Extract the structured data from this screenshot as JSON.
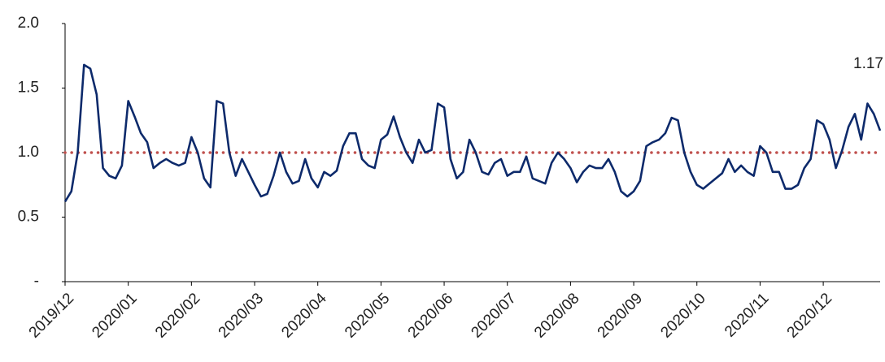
{
  "chart_data": {
    "type": "line",
    "categories": [
      "2019/12",
      null,
      null,
      null,
      null,
      null,
      null,
      null,
      null,
      null,
      "2020/01",
      null,
      null,
      null,
      null,
      null,
      null,
      null,
      null,
      null,
      "2020/02",
      null,
      null,
      null,
      null,
      null,
      null,
      null,
      null,
      null,
      "2020/03",
      null,
      null,
      null,
      null,
      null,
      null,
      null,
      null,
      null,
      "2020/04",
      null,
      null,
      null,
      null,
      null,
      null,
      null,
      null,
      null,
      "2020/05",
      null,
      null,
      null,
      null,
      null,
      null,
      null,
      null,
      null,
      "2020/06",
      null,
      null,
      null,
      null,
      null,
      null,
      null,
      null,
      null,
      "2020/07",
      null,
      null,
      null,
      null,
      null,
      null,
      null,
      null,
      null,
      "2020/08",
      null,
      null,
      null,
      null,
      null,
      null,
      null,
      null,
      null,
      "2020/09",
      null,
      null,
      null,
      null,
      null,
      null,
      null,
      null,
      null,
      "2020/10",
      null,
      null,
      null,
      null,
      null,
      null,
      null,
      null,
      null,
      "2020/11",
      null,
      null,
      null,
      null,
      null,
      null,
      null,
      null,
      null,
      "2020/12",
      null,
      null,
      null,
      null,
      null,
      null,
      null,
      null,
      null
    ],
    "series": [
      {
        "color": "#0d2a6b",
        "values": [
          0.62,
          0.7,
          1.0,
          1.68,
          1.65,
          1.45,
          0.88,
          0.82,
          0.8,
          0.9,
          1.4,
          1.28,
          1.15,
          1.08,
          0.88,
          0.92,
          0.95,
          0.92,
          0.9,
          0.92,
          1.12,
          1.0,
          0.8,
          0.73,
          1.4,
          1.38,
          1.0,
          0.82,
          0.95,
          0.85,
          0.75,
          0.66,
          0.68,
          0.82,
          1.0,
          0.85,
          0.76,
          0.78,
          0.95,
          0.8,
          0.73,
          0.85,
          0.82,
          0.86,
          1.05,
          1.15,
          1.15,
          0.95,
          0.9,
          0.88,
          1.1,
          1.14,
          1.28,
          1.12,
          1.0,
          0.92,
          1.1,
          1.0,
          1.02,
          1.38,
          1.35,
          0.95,
          0.8,
          0.85,
          1.1,
          1.0,
          0.85,
          0.83,
          0.92,
          0.95,
          0.82,
          0.85,
          0.85,
          0.97,
          0.8,
          0.78,
          0.76,
          0.92,
          1.0,
          0.95,
          0.88,
          0.77,
          0.85,
          0.9,
          0.88,
          0.88,
          0.95,
          0.85,
          0.7,
          0.66,
          0.7,
          0.78,
          1.05,
          1.08,
          1.1,
          1.15,
          1.27,
          1.25,
          1.0,
          0.85,
          0.75,
          0.72,
          0.76,
          0.8,
          0.84,
          0.95,
          0.85,
          0.9,
          0.85,
          0.82,
          1.05,
          1.0,
          0.85,
          0.85,
          0.72,
          0.72,
          0.75,
          0.88,
          0.95,
          1.25,
          1.22,
          1.1,
          0.88,
          1.02,
          1.2,
          1.3,
          1.1,
          1.38,
          1.3,
          1.17
        ]
      }
    ],
    "reference_line": {
      "value": 1,
      "color": "#c0504d"
    },
    "ylim": [
      0,
      2
    ],
    "yticks": [
      {
        "value": 0,
        "label": "-"
      },
      {
        "value": 0.5,
        "label": "0.5"
      },
      {
        "value": 1,
        "label": "1.0"
      },
      {
        "value": 1.5,
        "label": "1.5"
      },
      {
        "value": 2,
        "label": "2.0"
      }
    ],
    "grid": false
  }
}
